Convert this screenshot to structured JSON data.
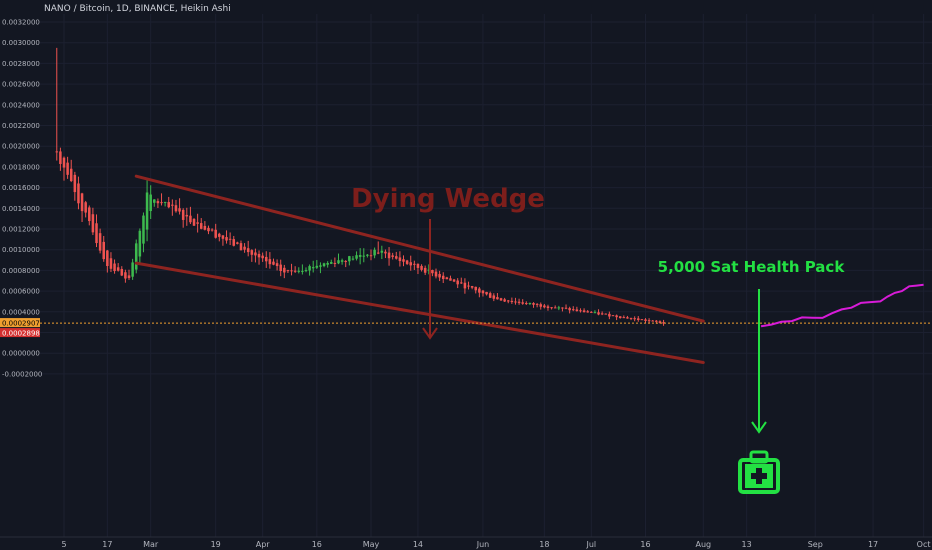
{
  "header": {
    "title": "NANO / Bitcoin, 1D, BINANCE, Heikin Ashi"
  },
  "colors": {
    "background": "#131722",
    "up": "#26a69a",
    "up_green": "#3dba4e",
    "down": "#ef5350",
    "wedge": "#8e2420",
    "pack": "#23e043",
    "projection": "#d81bd8",
    "current_price_line": "#f0a030"
  },
  "chart_data": {
    "type": "candlestick",
    "title": "NANO / Bitcoin, 1D, BINANCE, Heikin Ashi",
    "yticks": [
      "0.0032000",
      "0.0030000",
      "0.0028000",
      "0.0026000",
      "0.0024000",
      "0.0022000",
      "0.0020000",
      "0.0018000",
      "0.0016000",
      "0.0014000",
      "0.0012000",
      "0.0010000",
      "0.0008000",
      "0.0006000",
      "0.0004000",
      "0.0002000",
      "0.0000000",
      "-0.0002000"
    ],
    "xticks": [
      "5",
      "17",
      "Mar",
      "19",
      "Apr",
      "16",
      "May",
      "14",
      "Jun",
      "18",
      "Jul",
      "16",
      "Aug",
      "13",
      "Sep",
      "17",
      "Oct"
    ],
    "ylim": [
      -0.00024,
      0.0032
    ],
    "current_price_labels": [
      "0.0002907",
      "0.0002898"
    ],
    "key_points": [
      {
        "x": "Feb 3",
        "y": 0.00195,
        "high": 0.00295
      },
      {
        "x": "Feb 17",
        "y": 0.00085
      },
      {
        "x": "Feb 23",
        "y": 0.00072
      },
      {
        "x": "Feb 28",
        "y": 0.00152
      },
      {
        "x": "Apr 7",
        "y": 0.00078
      },
      {
        "x": "May 3",
        "y": 0.00098,
        "high": 0.00108
      },
      {
        "x": "Jun 5",
        "y": 0.00052
      },
      {
        "x": "Jul 21",
        "y": 0.00029
      }
    ],
    "annotations": [
      {
        "text": "Dying Wedge",
        "type": "label"
      },
      {
        "text": "5,000 Sat Health Pack",
        "type": "label"
      }
    ],
    "wedge_upper": [
      {
        "x": "Feb 25",
        "y": 0.00171
      },
      {
        "x": "Aug 1",
        "y": 0.00031
      }
    ],
    "wedge_lower": [
      {
        "x": "Feb 25",
        "y": 0.00087
      },
      {
        "x": "Aug 1",
        "y": -9e-05
      }
    ],
    "projection": [
      {
        "x": "Aug 17",
        "y": 0.00026
      },
      {
        "x": "Sep 3",
        "y": 0.00036
      },
      {
        "x": "Sep 19",
        "y": 0.00052
      },
      {
        "x": "Oct 1",
        "y": 0.00068
      }
    ]
  }
}
